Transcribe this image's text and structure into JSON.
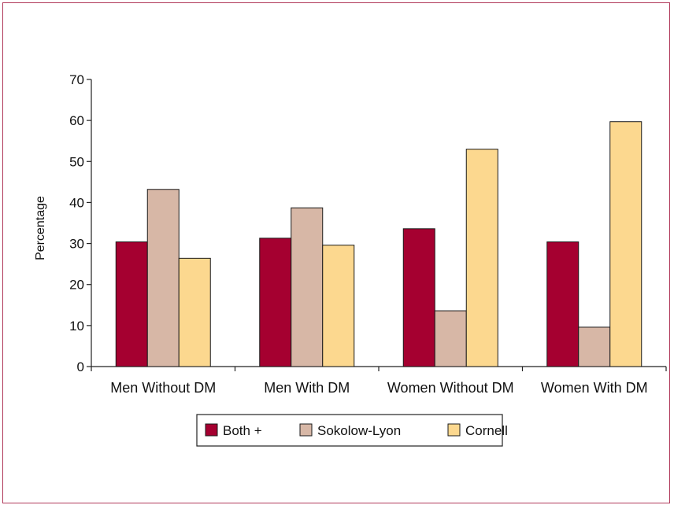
{
  "chart_data": {
    "type": "bar",
    "title": "",
    "xlabel": "",
    "ylabel": "Percentage",
    "ylim": [
      0,
      70
    ],
    "yticks": [
      0,
      10,
      20,
      30,
      40,
      50,
      60,
      70
    ],
    "categories": [
      "Men Without DM",
      "Men With DM",
      "Women Without DM",
      "Women With DM"
    ],
    "series": [
      {
        "name": "Both +",
        "color": "#a50030",
        "values": [
          30.4,
          31.3,
          33.6,
          30.4
        ]
      },
      {
        "name": "Sokolow-Lyon",
        "color": "#d7b7a6",
        "values": [
          43.2,
          38.7,
          13.6,
          9.6
        ]
      },
      {
        "name": "Cornell",
        "color": "#fcd88f",
        "values": [
          26.4,
          29.6,
          53.0,
          59.7
        ]
      }
    ],
    "legend_position": "bottom-center",
    "grid": false
  }
}
